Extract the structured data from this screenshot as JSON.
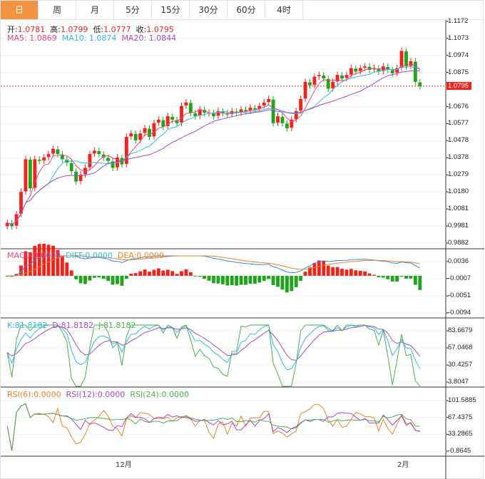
{
  "tabs": [
    "日",
    "周",
    "月",
    "5分",
    "15分",
    "30分",
    "60分",
    "4时"
  ],
  "active_tab": 0,
  "ohlc_header": {
    "open_label": "开:",
    "open": "1.0781",
    "high_label": "高:",
    "high": "1.0799",
    "low_label": "低:",
    "low": "1.0777",
    "close_label": "收:",
    "close": "1.0795"
  },
  "ma_header": {
    "ma5": "MA5: 1.0869",
    "ma10": "MA10: 1.0874",
    "ma20": "MA20: 1.0844"
  },
  "macd_header": {
    "macd": "MACD:0.0000",
    "diff": "DIFF:0.0000",
    "dea": "DEA:0.0000"
  },
  "kdj_header": {
    "k": "K:81.8182",
    "d": "D:81.8182",
    "j": "J:81.8182"
  },
  "rsi_header": {
    "rsi6": "RSI(6):0.0000",
    "rsi12": "RSI(12):0.0000",
    "rsi24": "RSI(24):0.0000"
  },
  "current_price": "1.0795",
  "x_labels": [
    "12月",
    "2月"
  ],
  "colors": {
    "up": "#f5221b",
    "down": "#1fa51a",
    "ma5": "#e8467c",
    "ma10": "#2bbde3",
    "ma20": "#a34bc6",
    "accent": "#f39240"
  },
  "chart_data": {
    "type": "candlestick",
    "price_axis": [
      "1.1172",
      "1.1073",
      "1.0974",
      "1.0875",
      "1.0795",
      "1.0676",
      "1.0577",
      "1.0478",
      "1.0378",
      "1.0279",
      "1.0180",
      "1.0081",
      "0.9981",
      "0.9882"
    ],
    "price_range": [
      0.9882,
      1.1172
    ],
    "macd_axis": [
      "0.0036",
      "-0.0007",
      "-0.0051",
      "-0.0094"
    ],
    "macd_range": [
      -0.0094,
      0.0036
    ],
    "kdj_axis": [
      "83.6679",
      "57.0468",
      "30.4257",
      "3.8047"
    ],
    "kdj_range": [
      3.8047,
      83.6679
    ],
    "rsi_axis": [
      "101.5885",
      "67.4375",
      "33.2865",
      "-0.8645"
    ],
    "rsi_range": [
      -0.8645,
      101.5885
    ],
    "closes": [
      1.0,
      0.998,
      1.005,
      1.018,
      1.037,
      1.02,
      1.037,
      1.036,
      1.038,
      1.04,
      1.043,
      1.04,
      1.037,
      1.035,
      1.03,
      1.024,
      1.028,
      1.032,
      1.04,
      1.042,
      1.04,
      1.038,
      1.036,
      1.032,
      1.038,
      1.034,
      1.05,
      1.052,
      1.048,
      1.052,
      1.055,
      1.05,
      1.058,
      1.06,
      1.056,
      1.062,
      1.06,
      1.058,
      1.068,
      1.07,
      1.064,
      1.062,
      1.066,
      1.064,
      1.064,
      1.062,
      1.065,
      1.064,
      1.063,
      1.065,
      1.064,
      1.066,
      1.065,
      1.067,
      1.066,
      1.068,
      1.07,
      1.072,
      1.058,
      1.062,
      1.058,
      1.055,
      1.06,
      1.065,
      1.072,
      1.082,
      1.08,
      1.085,
      1.086,
      1.084,
      1.078,
      1.082,
      1.086,
      1.084,
      1.086,
      1.09,
      1.088,
      1.09,
      1.091,
      1.089,
      1.09,
      1.088,
      1.091,
      1.089,
      1.087,
      1.09,
      1.1,
      1.091,
      1.094,
      1.082,
      1.0795
    ]
  }
}
